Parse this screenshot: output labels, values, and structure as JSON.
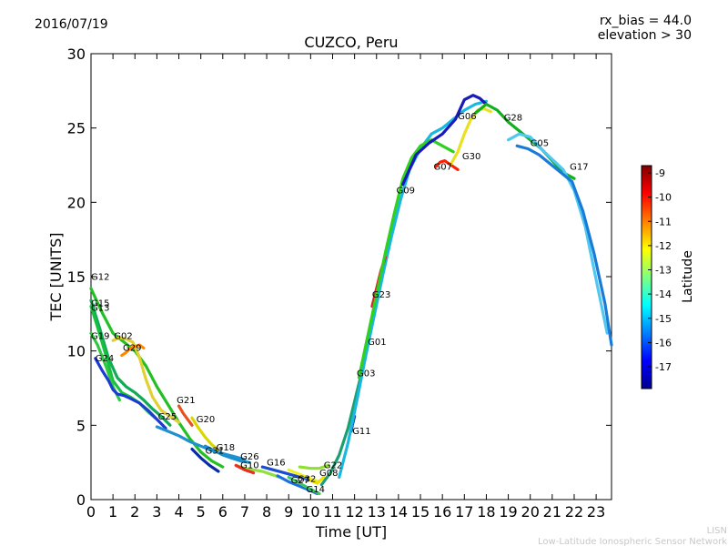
{
  "header": {
    "date": "2016/07/19",
    "rx_bias": "rx_bias = 44.0",
    "elevation": "elevation > 30"
  },
  "footer": {
    "org_short": "LISN",
    "org_long": "Low-Latitude Ionospheric Sensor Network"
  },
  "chart_data": {
    "type": "scatter",
    "title": "CUZCO, Peru",
    "xlabel": "Time [UT]",
    "ylabel": "TEC [UNITS]",
    "xlim": [
      0,
      23.7
    ],
    "ylim": [
      0,
      30
    ],
    "xticks": [
      "0",
      "1",
      "2",
      "3",
      "4",
      "5",
      "6",
      "7",
      "8",
      "9",
      "10",
      "11",
      "12",
      "13",
      "14",
      "15",
      "16",
      "17",
      "18",
      "19",
      "20",
      "21",
      "22",
      "23"
    ],
    "yticks": [
      "0",
      "5",
      "10",
      "15",
      "20",
      "25",
      "30"
    ],
    "colorbar": {
      "label": "Latitude",
      "range": [
        -17.9,
        -8.7
      ],
      "ticks": [
        "-9",
        "-10",
        "-11",
        "-12",
        "-13",
        "-14",
        "-15",
        "-16",
        "-17"
      ],
      "colors": [
        "#00008f",
        "#0000ff",
        "#0080ff",
        "#00ffff",
        "#80ff80",
        "#ffff00",
        "#ff8000",
        "#ff0000",
        "#800000"
      ]
    },
    "series": [
      {
        "name": "G12",
        "color": "#22c022",
        "x": [
          0.0,
          0.5,
          1.0,
          1.5,
          2.0,
          2.5,
          3.0,
          3.5,
          4.0,
          4.5,
          5.0,
          5.5,
          6.0
        ],
        "y": [
          14.2,
          12.6,
          11.2,
          10.6,
          10.0,
          9.0,
          7.6,
          6.4,
          5.2,
          4.1,
          3.2,
          2.6,
          2.2
        ]
      },
      {
        "name": "G15",
        "color": "#11aa55",
        "x": [
          0.0,
          0.4,
          0.8,
          1.2,
          1.6,
          2.0,
          2.4,
          2.8,
          3.2,
          3.6
        ],
        "y": [
          13.4,
          11.5,
          9.5,
          8.2,
          7.6,
          7.2,
          6.7,
          6.1,
          5.6,
          5.0
        ]
      },
      {
        "name": "G13",
        "color": "#18c040",
        "x": [
          0.0,
          0.3,
          0.7,
          1.0,
          1.4,
          1.8,
          2.2,
          2.6,
          3.0
        ],
        "y": [
          13.0,
          11.6,
          9.6,
          8.0,
          7.2,
          6.9,
          6.5,
          5.9,
          5.4
        ]
      },
      {
        "name": "G19",
        "color": "#30c840",
        "x": [
          0.0,
          0.3,
          0.7,
          1.0,
          1.3
        ],
        "y": [
          11.2,
          10.4,
          8.9,
          7.6,
          6.7
        ]
      },
      {
        "name": "G24",
        "color": "#1a3cd0",
        "x": [
          0.2,
          0.5,
          0.8,
          1.0,
          1.2,
          1.5,
          1.8,
          2.2,
          2.6,
          3.0,
          3.4
        ],
        "y": [
          9.5,
          8.7,
          8.0,
          7.4,
          7.1,
          7.0,
          6.8,
          6.5,
          6.0,
          5.4,
          4.8
        ]
      },
      {
        "name": "G02",
        "color": "#e0d030",
        "x": [
          1.0,
          1.3,
          1.6,
          1.9,
          2.2,
          2.5,
          2.8,
          3.2,
          3.6,
          4.0
        ],
        "y": [
          10.7,
          10.9,
          10.8,
          10.6,
          9.6,
          8.1,
          6.9,
          6.0,
          5.6,
          5.2
        ]
      },
      {
        "name": "G29",
        "color": "#ff8800",
        "x": [
          1.4,
          1.6,
          1.8,
          2.0,
          2.2,
          2.4
        ],
        "y": [
          9.7,
          9.9,
          10.2,
          10.3,
          10.4,
          10.2
        ]
      },
      {
        "name": "G21",
        "color": "#e85020",
        "x": [
          4.0,
          4.2,
          4.4,
          4.6
        ],
        "y": [
          6.3,
          5.8,
          5.4,
          5.0
        ]
      },
      {
        "name": "G25",
        "color": "#2090d0",
        "x": [
          3.0,
          3.5,
          4.0,
          4.5,
          5.0,
          5.5,
          6.0,
          6.5,
          7.0
        ],
        "y": [
          4.9,
          4.6,
          4.3,
          3.9,
          3.6,
          3.3,
          3.1,
          2.9,
          2.7
        ]
      },
      {
        "name": "G20",
        "color": "#d8d800",
        "x": [
          4.6,
          4.9,
          5.2,
          5.5,
          5.8
        ],
        "y": [
          5.5,
          4.8,
          4.2,
          3.7,
          3.3
        ]
      },
      {
        "name": "G31",
        "color": "#0a2aa8",
        "x": [
          4.6,
          5.0,
          5.4,
          5.8
        ],
        "y": [
          3.4,
          2.8,
          2.3,
          1.9
        ]
      },
      {
        "name": "G18",
        "color": "#1890d0",
        "x": [
          5.2,
          5.6,
          6.0,
          6.4,
          6.8,
          7.2
        ],
        "y": [
          3.6,
          3.3,
          3.0,
          2.8,
          2.6,
          2.5
        ]
      },
      {
        "name": "G26",
        "color": "#90e040",
        "x": [
          6.6,
          7.0,
          7.4,
          7.8,
          8.2,
          8.6
        ],
        "y": [
          2.3,
          2.1,
          2.0,
          1.9,
          1.7,
          1.5
        ]
      },
      {
        "name": "G10",
        "color": "#e83020",
        "x": [
          6.6,
          7.0,
          7.4
        ],
        "y": [
          2.3,
          2.0,
          1.8
        ]
      },
      {
        "name": "G16",
        "color": "#1a4cd0",
        "x": [
          7.8,
          8.3,
          8.8,
          9.3,
          9.8,
          10.3
        ],
        "y": [
          2.2,
          2.0,
          1.8,
          1.6,
          1.4,
          1.2
        ]
      },
      {
        "name": "G27",
        "color": "#1a70e0",
        "x": [
          8.5,
          9.0,
          9.5,
          10.0,
          10.3
        ],
        "y": [
          1.6,
          1.2,
          0.9,
          0.6,
          0.4
        ]
      },
      {
        "name": "G32",
        "color": "#f0f020",
        "x": [
          9.0,
          9.5,
          10.0,
          10.4
        ],
        "y": [
          2.0,
          1.7,
          1.4,
          1.2
        ]
      },
      {
        "name": "G14",
        "color": "#40c860",
        "x": [
          9.0,
          9.5,
          10.0,
          10.4
        ],
        "y": [
          1.5,
          1.1,
          0.7,
          0.4
        ]
      },
      {
        "name": "G22",
        "color": "#90e030",
        "x": [
          9.5,
          10.0,
          10.4,
          10.8
        ],
        "y": [
          2.2,
          2.1,
          2.1,
          2.3
        ]
      },
      {
        "name": "G08",
        "color": "#f0e000",
        "x": [
          10.0,
          10.3,
          10.6
        ],
        "y": [
          1.3,
          1.1,
          1.5
        ]
      },
      {
        "name": "G11",
        "color": "#1a2ab0",
        "x": [
          11.85,
          11.9,
          11.95,
          12.0
        ],
        "y": [
          4.6,
          5.0,
          5.3,
          5.6
        ]
      },
      {
        "name": "G03",
        "color": "#1aa070",
        "x": [
          10.5,
          10.9,
          11.3,
          11.7,
          12.1,
          12.5
        ],
        "y": [
          1.0,
          1.8,
          3.0,
          4.8,
          7.2,
          9.6
        ]
      },
      {
        "name": "G01",
        "color": "#18b8e0",
        "x": [
          11.3,
          11.7,
          12.1,
          12.5,
          12.9,
          13.3,
          13.7,
          14.1,
          14.5,
          15.0,
          15.5,
          16.0,
          16.5,
          17.0,
          17.5,
          18.0
        ],
        "y": [
          1.5,
          3.8,
          6.6,
          9.6,
          12.4,
          15.2,
          17.8,
          20.2,
          22.2,
          23.6,
          24.6,
          25.0,
          25.6,
          26.2,
          26.6,
          26.8
        ]
      },
      {
        "name": "G23",
        "color": "#e02020",
        "x": [
          12.8,
          13.0,
          13.2,
          13.4
        ],
        "y": [
          13.0,
          14.2,
          15.4,
          16.3
        ]
      },
      {
        "name": "G09",
        "color": "#30d020",
        "x": [
          12.2,
          12.6,
          13.0,
          13.4,
          13.8,
          14.2,
          14.6,
          15.0,
          15.5,
          16.0,
          16.5
        ],
        "y": [
          8.2,
          11.0,
          13.8,
          16.6,
          19.2,
          21.6,
          23.0,
          23.8,
          24.2,
          23.8,
          23.4
        ]
      },
      {
        "name": "G07",
        "color": "#ff2000",
        "x": [
          15.7,
          15.9,
          16.1,
          16.3,
          16.5,
          16.7
        ],
        "y": [
          22.4,
          22.7,
          22.8,
          22.6,
          22.4,
          22.2
        ]
      },
      {
        "name": "G30",
        "color": "#e8e020",
        "x": [
          16.4,
          16.7,
          17.0,
          17.3,
          17.6,
          17.9,
          18.2
        ],
        "y": [
          22.6,
          23.4,
          24.6,
          25.6,
          26.2,
          26.3,
          26.1
        ]
      },
      {
        "name": "G06",
        "color": "#1a1ab8",
        "x": [
          14.2,
          14.8,
          15.4,
          16.0,
          16.6,
          17.0,
          17.4,
          17.7,
          18.0
        ],
        "y": [
          21.2,
          23.2,
          24.0,
          24.6,
          25.6,
          26.9,
          27.2,
          27.0,
          26.6
        ]
      },
      {
        "name": "G28",
        "color": "#10b020",
        "x": [
          17.5,
          18.0,
          18.5,
          19.0,
          19.5,
          20.0,
          20.5,
          21.0,
          21.5,
          22.0
        ],
        "y": [
          26.0,
          26.6,
          26.2,
          25.4,
          24.8,
          24.2,
          23.6,
          22.8,
          22.0,
          21.6
        ]
      },
      {
        "name": "G05",
        "color": "#50c8f0",
        "x": [
          19.0,
          19.5,
          20.0,
          20.5,
          21.0,
          21.5,
          22.0,
          22.5,
          23.0,
          23.5
        ],
        "y": [
          24.2,
          24.6,
          24.4,
          23.6,
          22.9,
          22.2,
          20.8,
          18.4,
          14.8,
          11.2
        ]
      },
      {
        "name": "G17",
        "color": "#1a7ad8",
        "x": [
          19.4,
          19.9,
          20.4,
          20.9,
          21.4,
          21.9,
          22.4,
          22.9,
          23.4,
          23.7
        ],
        "y": [
          23.8,
          23.6,
          23.2,
          22.6,
          22.0,
          21.4,
          19.4,
          16.6,
          13.2,
          10.4
        ]
      }
    ],
    "labels": [
      {
        "name": "G12",
        "x": 0.0,
        "y": 14.8
      },
      {
        "name": "G15",
        "x": 0.0,
        "y": 13.0
      },
      {
        "name": "G13",
        "x": 0.0,
        "y": 12.7
      },
      {
        "name": "G19",
        "x": 0.0,
        "y": 10.8
      },
      {
        "name": "G24",
        "x": 0.2,
        "y": 9.3
      },
      {
        "name": "G02",
        "x": 1.05,
        "y": 10.8
      },
      {
        "name": "G29",
        "x": 1.45,
        "y": 10.0
      },
      {
        "name": "G21",
        "x": 3.9,
        "y": 6.5
      },
      {
        "name": "G25",
        "x": 3.05,
        "y": 5.4
      },
      {
        "name": "G20",
        "x": 4.8,
        "y": 5.2
      },
      {
        "name": "G31",
        "x": 5.2,
        "y": 3.1
      },
      {
        "name": "G18",
        "x": 5.7,
        "y": 3.3
      },
      {
        "name": "G26",
        "x": 6.8,
        "y": 2.7
      },
      {
        "name": "G10",
        "x": 6.8,
        "y": 2.1
      },
      {
        "name": "G16",
        "x": 8.0,
        "y": 2.3
      },
      {
        "name": "G27",
        "x": 9.1,
        "y": 1.1
      },
      {
        "name": "G32",
        "x": 9.4,
        "y": 1.2
      },
      {
        "name": "G14",
        "x": 9.8,
        "y": 0.5
      },
      {
        "name": "G22",
        "x": 10.6,
        "y": 2.1
      },
      {
        "name": "G08",
        "x": 10.4,
        "y": 1.6
      },
      {
        "name": "G11",
        "x": 11.9,
        "y": 4.4
      },
      {
        "name": "G03",
        "x": 12.1,
        "y": 8.3
      },
      {
        "name": "G01",
        "x": 12.6,
        "y": 10.4
      },
      {
        "name": "G23",
        "x": 12.8,
        "y": 13.6
      },
      {
        "name": "G09",
        "x": 13.9,
        "y": 20.6
      },
      {
        "name": "G07",
        "x": 15.6,
        "y": 22.2
      },
      {
        "name": "G30",
        "x": 16.9,
        "y": 22.9
      },
      {
        "name": "G06",
        "x": 16.7,
        "y": 25.6
      },
      {
        "name": "G28",
        "x": 18.8,
        "y": 25.5
      },
      {
        "name": "G05",
        "x": 20.0,
        "y": 23.8
      },
      {
        "name": "G17",
        "x": 21.8,
        "y": 22.2
      }
    ]
  }
}
